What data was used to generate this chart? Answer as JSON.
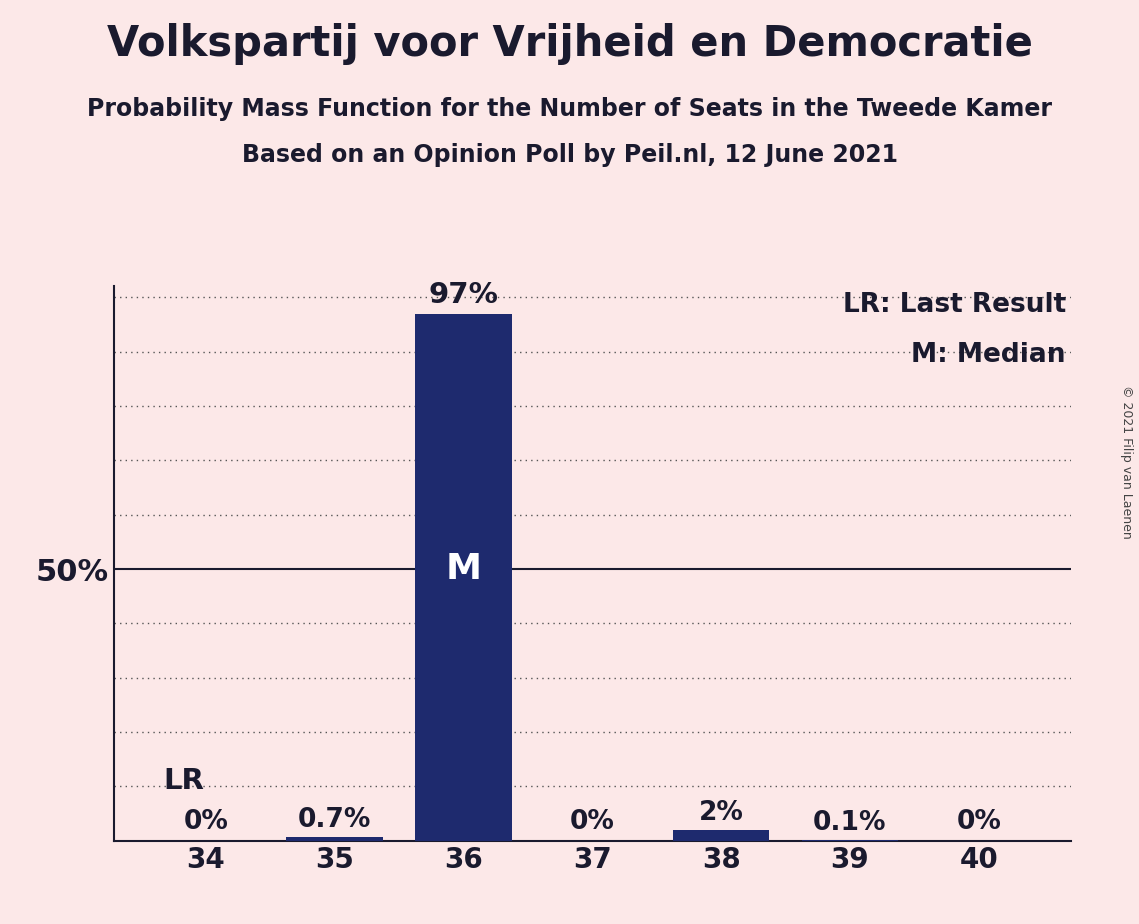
{
  "title": "Volkspartij voor Vrijheid en Democratie",
  "subtitle1": "Probability Mass Function for the Number of Seats in the Tweede Kamer",
  "subtitle2": "Based on an Opinion Poll by Peil.nl, 12 June 2021",
  "copyright": "© 2021 Filip van Laenen",
  "categories": [
    34,
    35,
    36,
    37,
    38,
    39,
    40
  ],
  "values": [
    0.0,
    0.7,
    97.0,
    0.0,
    2.0,
    0.1,
    0.0
  ],
  "bar_labels": [
    "0%",
    "0.7%",
    "97%",
    "0%",
    "2%",
    "0.1%",
    "0%"
  ],
  "bar_color": "#1e2a6e",
  "background_color": "#fce8e8",
  "title_color": "#1a1a2e",
  "text_color": "#1a1a2e",
  "median_seat": 36,
  "last_result_seat": 34,
  "legend_lr": "LR: Last Result",
  "legend_m": "M: Median",
  "ytick_label": "50%",
  "ytick_value": 50,
  "ylim": [
    0,
    102
  ],
  "title_fontsize": 30,
  "subtitle_fontsize": 17,
  "tick_fontsize": 20,
  "legend_fontsize": 19,
  "bar_label_fontsize": 19,
  "median_label_fontsize": 26,
  "lr_fontsize": 21,
  "grid_color": "#555555",
  "spine_color": "#1a1a2e"
}
